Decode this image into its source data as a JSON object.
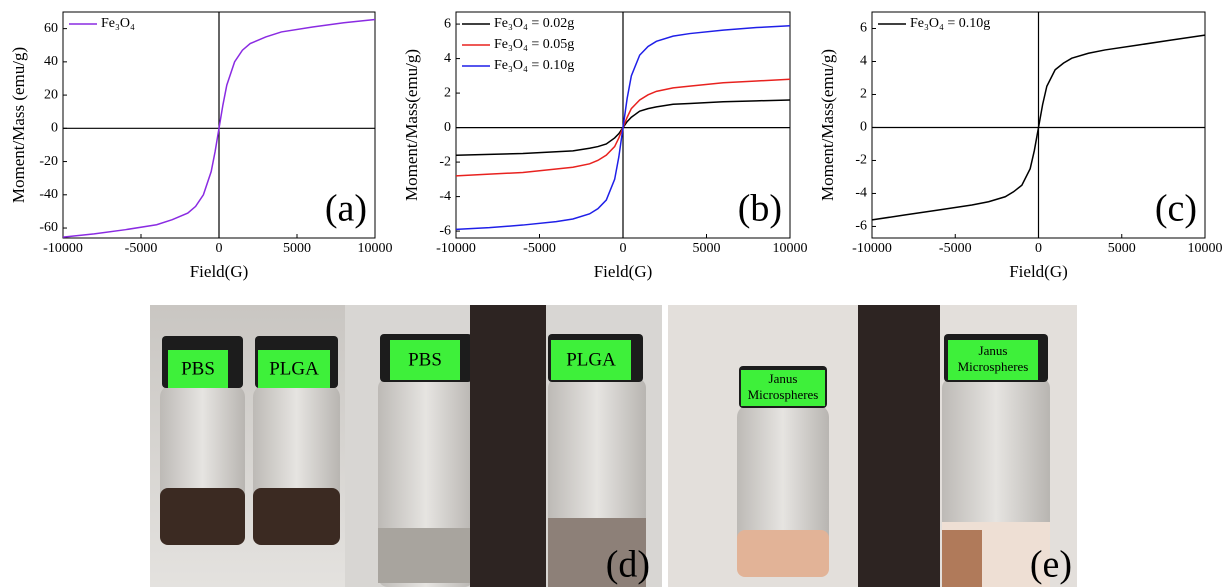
{
  "chart_data": [
    {
      "type": "line",
      "ylabel": "Moment/Mass (emu/g)",
      "xlabel": "Field(G)",
      "annotation": "(a)",
      "x": [
        -10000,
        -8000,
        -6000,
        -4000,
        -3000,
        -2000,
        -1500,
        -1000,
        -500,
        -250,
        0,
        250,
        500,
        1000,
        1500,
        2000,
        3000,
        4000,
        6000,
        8000,
        10000
      ],
      "series": [
        {
          "name": "Fe₃O₄",
          "color": "#8a2be2",
          "values": [
            -65.5,
            -63.5,
            -61,
            -58,
            -55,
            -51,
            -47,
            -40,
            -26,
            -14,
            0,
            14,
            26,
            40,
            47,
            51,
            55,
            58,
            61,
            63.5,
            65.5
          ]
        }
      ],
      "xlim": [
        -10000,
        10000
      ],
      "ylim": [
        -66,
        70
      ],
      "xticks": [
        -10000,
        -5000,
        0,
        5000,
        10000
      ],
      "yticks": [
        -60,
        -40,
        -20,
        0,
        20,
        40,
        60
      ]
    },
    {
      "type": "line",
      "ylabel": "Moment/Mass(emu/g)",
      "xlabel": "Field(G)",
      "annotation": "(b)",
      "x": [
        -10000,
        -8000,
        -6000,
        -4000,
        -3000,
        -2000,
        -1500,
        -1000,
        -500,
        -250,
        0,
        250,
        500,
        1000,
        1500,
        2000,
        3000,
        4000,
        6000,
        8000,
        10000
      ],
      "series": [
        {
          "name": "Fe₃O₄ = 0.02g",
          "color": "#000000",
          "values": [
            -1.6,
            -1.55,
            -1.5,
            -1.4,
            -1.35,
            -1.2,
            -1.1,
            -0.95,
            -0.6,
            -0.35,
            0,
            0.35,
            0.6,
            0.95,
            1.1,
            1.2,
            1.35,
            1.4,
            1.5,
            1.55,
            1.6
          ]
        },
        {
          "name": "Fe₃O₄ = 0.05g",
          "color": "#e8221f",
          "values": [
            -2.8,
            -2.7,
            -2.6,
            -2.4,
            -2.3,
            -2.1,
            -1.9,
            -1.6,
            -1.1,
            -0.6,
            0,
            0.6,
            1.1,
            1.6,
            1.9,
            2.1,
            2.3,
            2.4,
            2.6,
            2.7,
            2.8
          ]
        },
        {
          "name": "Fe₃O₄ = 0.10g",
          "color": "#1f1fe8",
          "values": [
            -5.9,
            -5.8,
            -5.65,
            -5.45,
            -5.3,
            -5.0,
            -4.7,
            -4.2,
            -3.0,
            -1.7,
            0,
            1.7,
            3.0,
            4.2,
            4.7,
            5.0,
            5.3,
            5.45,
            5.65,
            5.8,
            5.9
          ]
        }
      ],
      "xlim": [
        -10000,
        10000
      ],
      "ylim": [
        -6.4,
        6.7
      ],
      "xticks": [
        -10000,
        -5000,
        0,
        5000,
        10000
      ],
      "yticks": [
        -6,
        -4,
        -2,
        0,
        2,
        4,
        6
      ]
    },
    {
      "type": "line",
      "ylabel": "Moment/Mass(emu/g)",
      "xlabel": "Field(G)",
      "annotation": "(c)",
      "x": [
        -10000,
        -8000,
        -6000,
        -4000,
        -3000,
        -2000,
        -1500,
        -1000,
        -500,
        -250,
        0,
        250,
        500,
        1000,
        1500,
        2000,
        3000,
        4000,
        6000,
        8000,
        10000
      ],
      "series": [
        {
          "name": "Fe₃O₄ = 0.10g",
          "color": "#000000",
          "values": [
            -5.6,
            -5.3,
            -5.0,
            -4.7,
            -4.5,
            -4.2,
            -3.9,
            -3.5,
            -2.5,
            -1.4,
            0,
            1.4,
            2.5,
            3.5,
            3.9,
            4.2,
            4.5,
            4.7,
            5.0,
            5.3,
            5.6
          ]
        }
      ],
      "xlim": [
        -10000,
        10000
      ],
      "ylim": [
        -6.7,
        7.0
      ],
      "xticks": [
        -10000,
        -5000,
        0,
        5000,
        10000
      ],
      "yticks": [
        -6,
        -4,
        -2,
        0,
        2,
        4,
        6
      ]
    }
  ],
  "photos": {
    "d": {
      "labels": [
        "PBS",
        "PLGA",
        "PBS",
        "PLGA"
      ],
      "panel": "(d)"
    },
    "e": {
      "labels": [
        [
          "Janus",
          "Microspheres"
        ],
        [
          "Janus",
          "Microspheres"
        ]
      ],
      "panel": "(e)"
    }
  }
}
